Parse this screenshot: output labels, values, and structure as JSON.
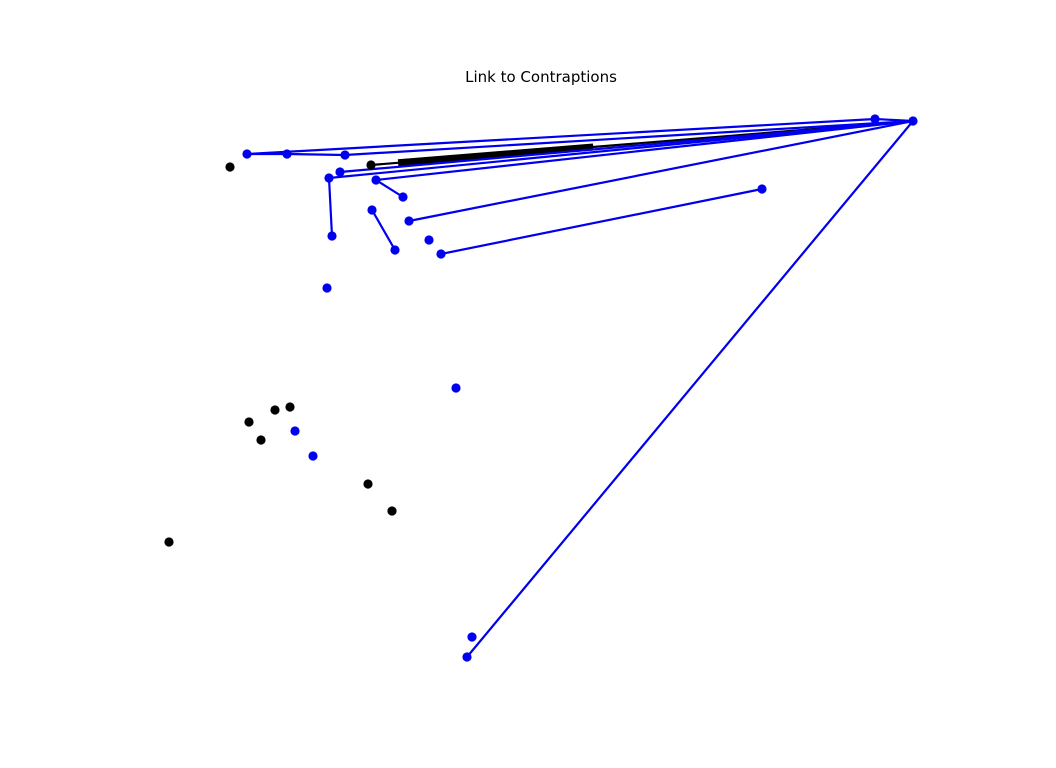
{
  "diagram": {
    "title": "Link to Contraptions",
    "colors": {
      "background": "#ffffff",
      "blue": "#0000ee",
      "black": "#000000"
    },
    "nodes": [
      {
        "id": "hub",
        "color": "blue"
      },
      {
        "id": "hub2",
        "color": "blue"
      },
      {
        "id": "n247",
        "color": "blue"
      },
      {
        "id": "n287",
        "color": "blue"
      },
      {
        "id": "n345",
        "color": "blue"
      },
      {
        "id": "n340",
        "color": "blue"
      },
      {
        "id": "n329",
        "color": "blue"
      },
      {
        "id": "n332",
        "color": "blue"
      },
      {
        "id": "n376",
        "color": "blue"
      },
      {
        "id": "n403",
        "color": "blue"
      },
      {
        "id": "n372",
        "color": "blue"
      },
      {
        "id": "n395",
        "color": "blue"
      },
      {
        "id": "n409",
        "color": "blue"
      },
      {
        "id": "n429",
        "color": "blue"
      },
      {
        "id": "n441",
        "color": "blue"
      },
      {
        "id": "n762",
        "color": "blue"
      },
      {
        "id": "n327",
        "color": "blue"
      },
      {
        "id": "n456",
        "color": "blue"
      },
      {
        "id": "n295",
        "color": "blue"
      },
      {
        "id": "n313",
        "color": "blue"
      },
      {
        "id": "n472",
        "color": "blue"
      },
      {
        "id": "n467",
        "color": "blue"
      },
      {
        "id": "k371",
        "color": "black"
      },
      {
        "id": "k230",
        "color": "black"
      },
      {
        "id": "k275",
        "color": "black"
      },
      {
        "id": "k290",
        "color": "black"
      },
      {
        "id": "k249",
        "color": "black"
      },
      {
        "id": "k261",
        "color": "black"
      },
      {
        "id": "k368",
        "color": "black"
      },
      {
        "id": "k392",
        "color": "black"
      },
      {
        "id": "k169",
        "color": "black"
      }
    ],
    "edges": [
      {
        "from": "n247",
        "to": "hub2",
        "color": "blue",
        "weight": "normal"
      },
      {
        "from": "n247",
        "to": "n287",
        "color": "blue",
        "weight": "normal"
      },
      {
        "from": "n287",
        "to": "n345",
        "color": "blue",
        "weight": "normal"
      },
      {
        "from": "k371",
        "to": "hub",
        "color": "black",
        "weight": "normal"
      },
      {
        "from": "k371",
        "to": "hub",
        "color": "black",
        "weight": "heavy"
      },
      {
        "from": "n345",
        "to": "hub",
        "color": "blue",
        "weight": "normal"
      },
      {
        "from": "n340",
        "to": "hub",
        "color": "blue",
        "weight": "normal"
      },
      {
        "from": "n329",
        "to": "hub",
        "color": "blue",
        "weight": "normal"
      },
      {
        "from": "n329",
        "to": "n332",
        "color": "blue",
        "weight": "normal"
      },
      {
        "from": "n376",
        "to": "hub",
        "color": "blue",
        "weight": "normal"
      },
      {
        "from": "n376",
        "to": "n403",
        "color": "blue",
        "weight": "normal"
      },
      {
        "from": "n372",
        "to": "n395",
        "color": "blue",
        "weight": "normal"
      },
      {
        "from": "n409",
        "to": "hub",
        "color": "blue",
        "weight": "normal"
      },
      {
        "from": "n441",
        "to": "n762",
        "color": "blue",
        "weight": "normal"
      },
      {
        "from": "n467",
        "to": "hub",
        "color": "blue",
        "weight": "normal"
      },
      {
        "from": "hub2",
        "to": "hub",
        "color": "blue",
        "weight": "normal"
      }
    ]
  }
}
